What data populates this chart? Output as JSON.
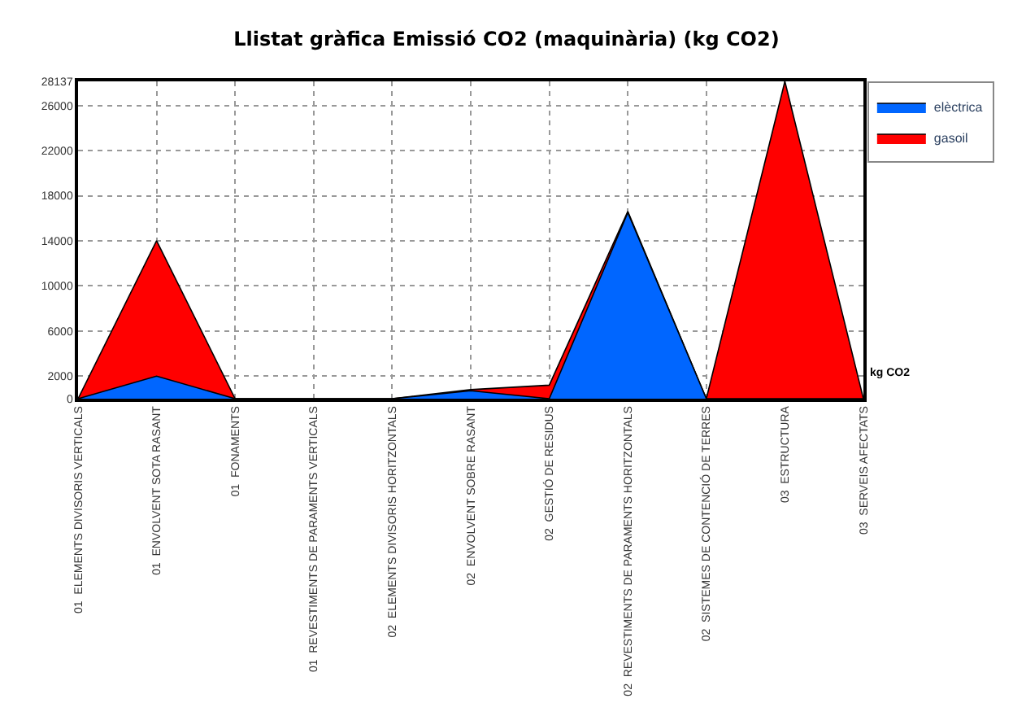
{
  "chart_data": {
    "type": "area",
    "title": "Llistat gràfica Emissió CO2 (maquinària) (kg CO2)",
    "categories": [
      "01  ELEMENTS DIVISORIS VERTICALS",
      "01  ENVOLVENT SOTA RASANT",
      "01  FONAMENTS",
      "01  REVESTIMENTS DE PARAMENTS VERTICALS",
      "02  ELEMENTS DIVISORIS HORITZONTALS",
      "02  ENVOLVENT SOBRE RASANT",
      "02  GESTIÓ DE RESIDUS",
      "02  REVESTIMENTS DE PARAMENTS HORITZONTALS",
      "02  SISTEMES DE CONTENCIÓ DE TERRES",
      "03  ESTRUCTURA",
      "03  SERVEIS AFECTATS"
    ],
    "series": [
      {
        "name": "gasoil",
        "color": "#ff0000",
        "values": [
          0,
          14000,
          0,
          0,
          0,
          800,
          1200,
          16600,
          0,
          28137,
          0
        ]
      },
      {
        "name": "elèctrica",
        "color": "#0066ff",
        "values": [
          0,
          2000,
          0,
          0,
          0,
          700,
          0,
          16500,
          0,
          0,
          0
        ]
      }
    ],
    "ylim": [
      0,
      28137
    ],
    "yticks": [
      0,
      2000,
      6000,
      10000,
      14000,
      18000,
      22000,
      26000,
      28137
    ],
    "annotations": [
      "kg CO2"
    ],
    "grid": true,
    "legend": "top right"
  }
}
